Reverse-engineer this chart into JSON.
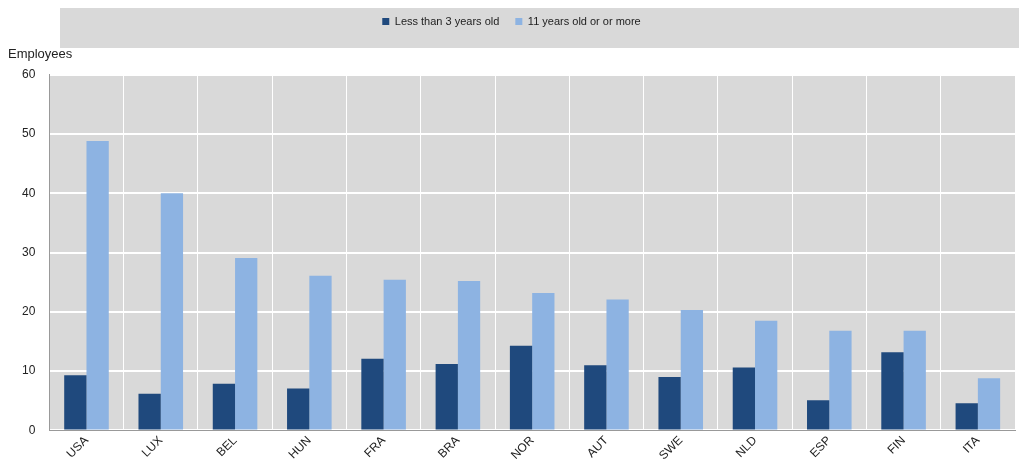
{
  "chart_data": {
    "type": "bar",
    "ylabel": "Employees",
    "categories": [
      "USA",
      "LUX",
      "BEL",
      "HUN",
      "FRA",
      "BRA",
      "NOR",
      "AUT",
      "SWE",
      "NLD",
      "ESP",
      "FIN",
      "ITA"
    ],
    "series": [
      {
        "name": "Less than 3 years old",
        "color": "#1f497d",
        "values": [
          9.3,
          6.2,
          7.9,
          7.1,
          12.1,
          11.2,
          14.3,
          11.0,
          9.0,
          10.6,
          5.1,
          13.2,
          4.6
        ]
      },
      {
        "name": "11 years old or or more",
        "color": "#8db3e2",
        "values": [
          48.8,
          40.0,
          29.1,
          26.1,
          25.4,
          25.2,
          23.2,
          22.1,
          20.3,
          18.5,
          16.8,
          16.8,
          8.8
        ]
      }
    ],
    "ylim": [
      0,
      60
    ],
    "yticks": [
      0,
      10,
      20,
      30,
      40,
      50,
      60
    ],
    "grid": true,
    "legend": "top"
  }
}
